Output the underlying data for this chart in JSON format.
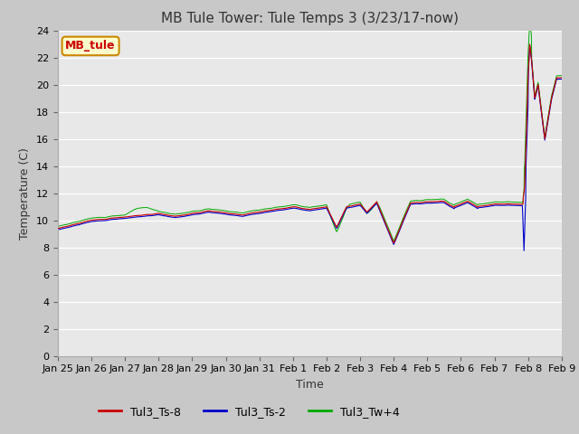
{
  "title": "MB Tule Tower: Tule Temps 3 (3/23/17-now)",
  "xlabel": "Time",
  "ylabel": "Temperature (C)",
  "ylim": [
    0,
    24
  ],
  "yticks": [
    0,
    2,
    4,
    6,
    8,
    10,
    12,
    14,
    16,
    18,
    20,
    22,
    24
  ],
  "xtick_labels": [
    "Jan 25",
    "Jan 26",
    "Jan 27",
    "Jan 28",
    "Jan 29",
    "Jan 30",
    "Jan 31",
    "Feb 1",
    "Feb 2",
    "Feb 3",
    "Feb 4",
    "Feb 5",
    "Feb 6",
    "Feb 7",
    "Feb 8",
    "Feb 9"
  ],
  "fig_bg_color": "#c8c8c8",
  "plot_bg_color": "#e8e8e8",
  "grid_color": "#ffffff",
  "line_colors": {
    "Tul3_Ts-8": "#cc0000",
    "Tul3_Ts-2": "#0000cc",
    "Tul3_Tw+4": "#00aa00"
  },
  "watermark_text": "MB_tule",
  "watermark_bg": "#ffffcc",
  "watermark_border": "#cc8800",
  "watermark_text_color": "#cc0000",
  "title_fontsize": 11,
  "axis_label_fontsize": 9,
  "tick_fontsize": 8
}
